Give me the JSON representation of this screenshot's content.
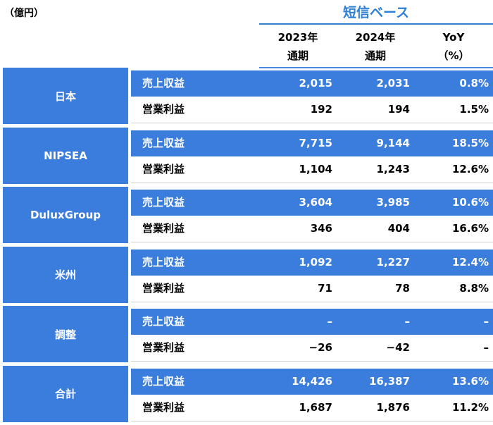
{
  "unit": "（億円）",
  "basis": "短信ベース",
  "columns": {
    "c2023": [
      "2023年",
      "通期"
    ],
    "c2024": [
      "2024年",
      "通期"
    ],
    "yoy": [
      "YoY",
      "（%）"
    ]
  },
  "colors": {
    "header_blue": "#3B7DDD",
    "title_blue": "#2F7FD6"
  },
  "groups": [
    {
      "segment": "日本",
      "revenue": {
        "label": "売上収益",
        "y2023": "2,015",
        "y2024": "2,031",
        "yoy": "0.8%"
      },
      "operating": {
        "label": "営業利益",
        "y2023": "192",
        "y2024": "194",
        "yoy": "1.5%"
      }
    },
    {
      "segment": "NIPSEA",
      "revenue": {
        "label": "売上収益",
        "y2023": "7,715",
        "y2024": "9,144",
        "yoy": "18.5%"
      },
      "operating": {
        "label": "営業利益",
        "y2023": "1,104",
        "y2024": "1,243",
        "yoy": "12.6%"
      }
    },
    {
      "segment": "DuluxGroup",
      "revenue": {
        "label": "売上収益",
        "y2023": "3,604",
        "y2024": "3,985",
        "yoy": "10.6%"
      },
      "operating": {
        "label": "営業利益",
        "y2023": "346",
        "y2024": "404",
        "yoy": "16.6%"
      }
    },
    {
      "segment": "米州",
      "revenue": {
        "label": "売上収益",
        "y2023": "1,092",
        "y2024": "1,227",
        "yoy": "12.4%"
      },
      "operating": {
        "label": "営業利益",
        "y2023": "71",
        "y2024": "78",
        "yoy": "8.8%"
      }
    },
    {
      "segment": "調整",
      "revenue": {
        "label": "売上収益",
        "y2023": "–",
        "y2024": "–",
        "yoy": "–"
      },
      "operating": {
        "label": "営業利益",
        "y2023": "−26",
        "y2024": "−42",
        "yoy": "–"
      }
    },
    {
      "segment": "合計",
      "revenue": {
        "label": "売上収益",
        "y2023": "14,426",
        "y2024": "16,387",
        "yoy": "13.6%"
      },
      "operating": {
        "label": "営業利益",
        "y2023": "1,687",
        "y2024": "1,876",
        "yoy": "11.2%"
      }
    }
  ]
}
